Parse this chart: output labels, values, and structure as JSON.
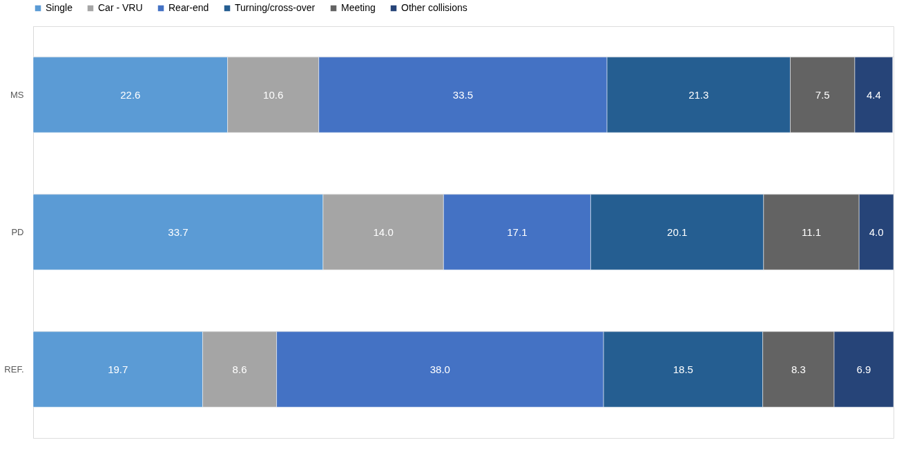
{
  "chart_data": {
    "type": "bar",
    "orientation": "horizontal",
    "stacked": true,
    "categories": [
      "MS",
      "PD",
      "REF."
    ],
    "series": [
      {
        "name": "Single",
        "color": "#5b9bd5",
        "values": [
          22.6,
          33.7,
          19.7
        ],
        "value_labels": [
          "22.6",
          "33.7",
          "19.7"
        ]
      },
      {
        "name": "Car - VRU",
        "color": "#a5a5a5",
        "values": [
          10.6,
          14.0,
          8.6
        ],
        "value_labels": [
          "10.6",
          "14.0",
          "8.6"
        ]
      },
      {
        "name": "Rear-end",
        "color": "#4472c4",
        "values": [
          33.5,
          17.1,
          38.0
        ],
        "value_labels": [
          "33.5",
          "17.1",
          "38.0"
        ]
      },
      {
        "name": "Turning/cross-over",
        "color": "#255e91",
        "values": [
          21.3,
          20.1,
          18.5
        ],
        "value_labels": [
          "21.3",
          "20.1",
          "18.5"
        ]
      },
      {
        "name": "Meeting",
        "color": "#636363",
        "values": [
          7.5,
          11.1,
          8.3
        ],
        "value_labels": [
          "7.5",
          "11.1",
          "8.3"
        ]
      },
      {
        "name": "Other collisions",
        "color": "#264478",
        "values": [
          4.4,
          4.0,
          6.9
        ],
        "value_labels": [
          "4.4",
          "4.0",
          "6.9"
        ]
      }
    ],
    "xlim": [
      0,
      100
    ],
    "legend": "top",
    "grid": "y",
    "tick_labels": "y"
  }
}
